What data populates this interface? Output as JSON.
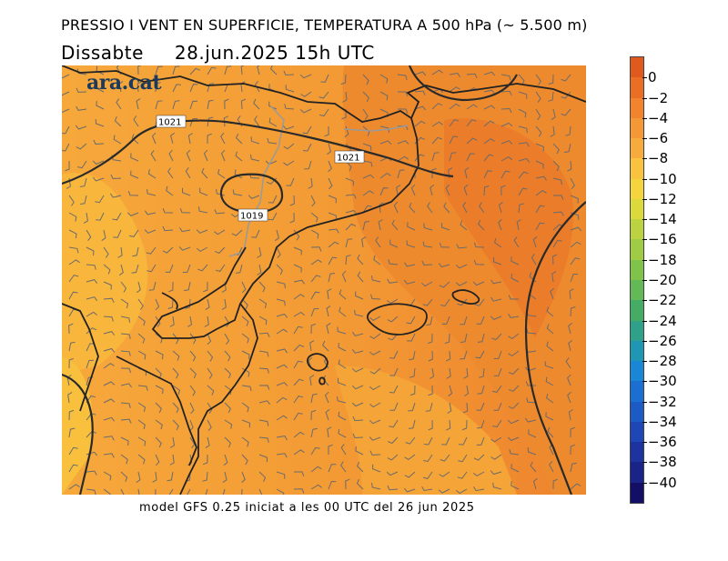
{
  "header": {
    "title": "PRESSIO I VENT EN SUPERFICIE, TEMPERATURA A 500 hPa (~ 5.500 m)",
    "day": "Dissabte",
    "datetime": "28.jun.2025 15h UTC"
  },
  "logo": {
    "text": "ara.cat"
  },
  "footer": {
    "model_text": "model GFS 0.25 iniciat a les 00 UTC del 26 jun 2025"
  },
  "isobars": [
    {
      "label": "1021"
    },
    {
      "label": "1021"
    },
    {
      "label": "1019"
    }
  ],
  "colorbar": {
    "unit_labels": [
      "0",
      "−2",
      "−4",
      "−6",
      "−8",
      "−10",
      "−12",
      "−14",
      "−16",
      "−18",
      "−20",
      "−22",
      "−24",
      "−26",
      "−28",
      "−30",
      "−32",
      "−34",
      "−36",
      "−38",
      "−40"
    ],
    "colors": [
      "#e05a1e",
      "#ea6f24",
      "#f1842c",
      "#f49836",
      "#f7ab3d",
      "#f9c23f",
      "#f4d53d",
      "#dbd93c",
      "#bcd240",
      "#9fcb45",
      "#7fc34b",
      "#62b956",
      "#45ac66",
      "#2fa08a",
      "#1f97b4",
      "#1a86d6",
      "#1b6fd0",
      "#1d5bc4",
      "#1e46b4",
      "#1c33a0",
      "#1a2387",
      "#140f66"
    ]
  },
  "colors": {
    "field_warm": "#f19433",
    "field_mid": "#f7a93a",
    "field_cool": "#f9be3b",
    "field_hot": "#ec7b2a",
    "coast": "#222222",
    "isobar": "#2a2a2a",
    "border": "#888888"
  }
}
